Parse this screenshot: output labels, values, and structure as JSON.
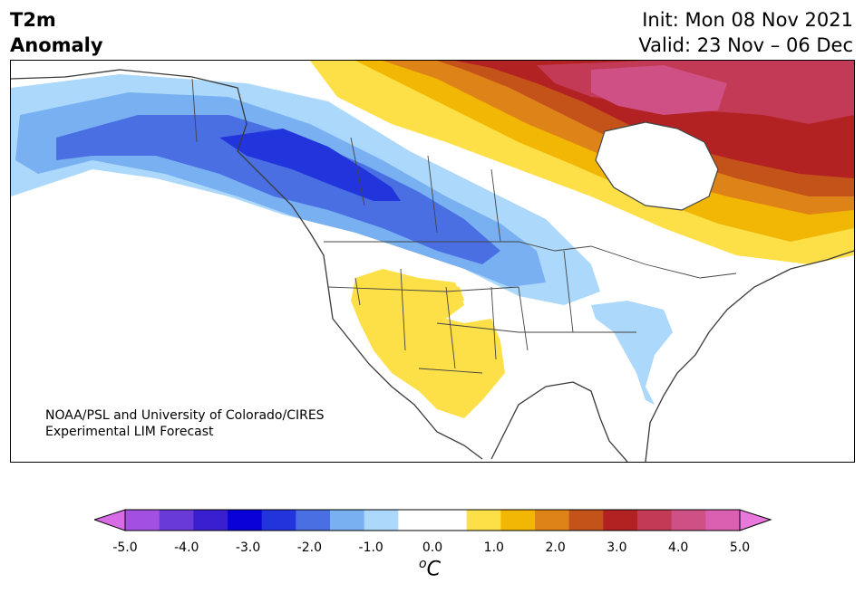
{
  "title": {
    "left_line1": "T2m",
    "left_line2": "Anomaly",
    "init": "Init: Mon 08 Nov 2021",
    "valid": "Valid: 23 Nov – 06 Dec"
  },
  "credit": {
    "line1": "NOAA/PSL and University of Colorado/CIRES",
    "line2": "Experimental LIM Forecast"
  },
  "colorbar": {
    "ticks": [
      "-5.0",
      "-4.0",
      "-3.0",
      "-2.0",
      "-1.0",
      "0.0",
      "1.0",
      "2.0",
      "3.0",
      "4.0",
      "5.0"
    ],
    "unit_sup": "o",
    "unit": "C",
    "under_color": "#d86ce6",
    "over_color": "#e878dc",
    "colors": [
      "#a350e0",
      "#6a3ad8",
      "#3a1fd0",
      "#0a00d8",
      "#2235dd",
      "#4a6fe3",
      "#78b0f2",
      "#abd8fb",
      "#ffffff",
      "#ffffff",
      "#fde047",
      "#f2b705",
      "#de8317",
      "#c4531a",
      "#b22222",
      "#c23a55",
      "#cf5084",
      "#da5fb0"
    ]
  },
  "anomaly_colors": {
    "blue1": "#abd8fb",
    "blue2": "#78b0f2",
    "blue3": "#4a6fe3",
    "blue4": "#2235dd",
    "yellow": "#fde047",
    "gold": "#f2b705",
    "orange": "#de8317",
    "rust": "#c4531a",
    "red": "#b22222",
    "crimson": "#c23a55",
    "magenta": "#cf5084"
  }
}
